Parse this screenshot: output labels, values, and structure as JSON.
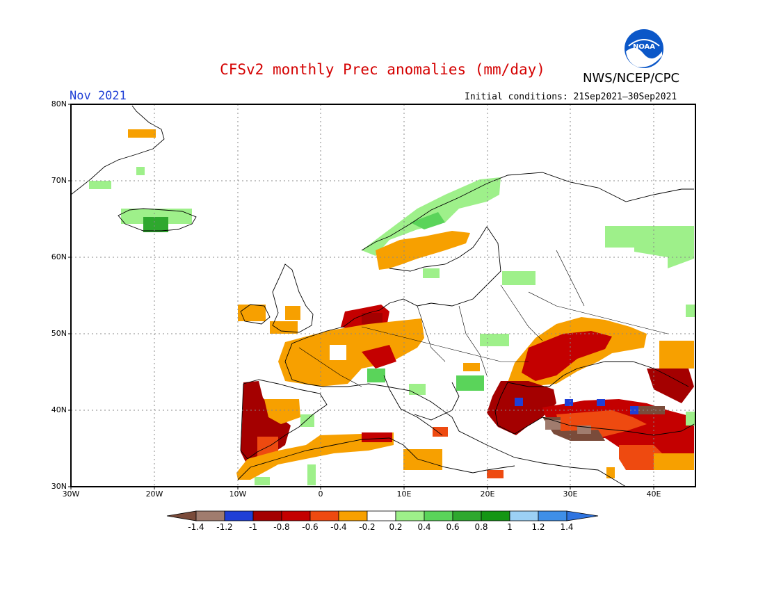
{
  "title": "CFSv2 monthly Prec anomalies (mm/day)",
  "agency": "NWS/NCEP/CPC",
  "logo_text": "NOAA",
  "valid_month": "Nov 2021",
  "initial_conditions": "Initial conditions: 21Sep2021–30Sep2021",
  "map": {
    "lat_labels": [
      "80N",
      "70N",
      "60N",
      "50N",
      "40N",
      "30N"
    ],
    "lon_labels": [
      "30W",
      "20W",
      "10W",
      "0",
      "10E",
      "20E",
      "30E",
      "40E"
    ],
    "extent": {
      "lon": [
        -30,
        45
      ],
      "lat": [
        30,
        80
      ]
    }
  },
  "colorbar": {
    "labels": [
      "-1.4",
      "-1.2",
      "-1",
      "-0.8",
      "-0.6",
      "-0.4",
      "-0.2",
      "0.2",
      "0.4",
      "0.6",
      "0.8",
      "1",
      "1.2",
      "1.4"
    ],
    "colors": [
      "#7a4b3a",
      "#a07c6e",
      "#1f3fd6",
      "#a40000",
      "#c40000",
      "#ee4a10",
      "#f7a000",
      "#ffffff",
      "#9ef08a",
      "#5ad45a",
      "#2ea82e",
      "#149614",
      "#9cd0f5",
      "#3f8fe8",
      "#2f74e0"
    ]
  }
}
